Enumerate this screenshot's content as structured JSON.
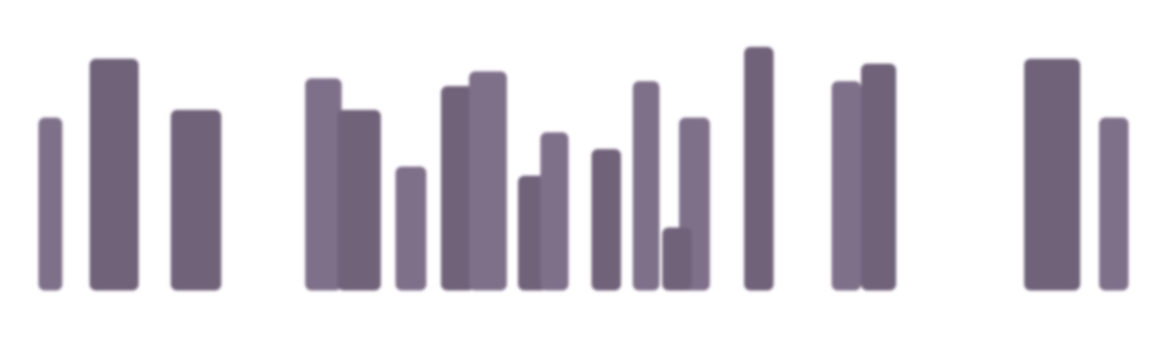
{
  "page": {
    "background": "#ffffff"
  },
  "palette": {
    "dark": "#6f6279",
    "light": "#7f6f8a"
  },
  "bars": [
    {
      "tone": "light",
      "level": 0.71
    },
    {
      "tone": "dark",
      "level": 0.95
    },
    {
      "tone": "dark",
      "level": 0.74
    },
    {
      "tone": "light",
      "level": 0.87
    },
    {
      "tone": "dark",
      "level": 0.74
    },
    {
      "tone": "light",
      "level": 0.51
    },
    {
      "tone": "dark",
      "level": 0.84
    },
    {
      "tone": "light",
      "level": 0.9
    },
    {
      "tone": "dark",
      "level": 0.47
    },
    {
      "tone": "light",
      "level": 0.65
    },
    {
      "tone": "dark",
      "level": 0.58
    },
    {
      "tone": "light",
      "level": 0.86
    },
    {
      "tone": "light",
      "level": 0.71
    },
    {
      "tone": "dark",
      "level": 0.26
    },
    {
      "tone": "dark",
      "level": 1.0
    },
    {
      "tone": "light",
      "level": 0.86
    },
    {
      "tone": "dark",
      "level": 0.93
    },
    {
      "tone": "dark",
      "level": 0.95
    },
    {
      "tone": "light",
      "level": 0.71
    }
  ]
}
